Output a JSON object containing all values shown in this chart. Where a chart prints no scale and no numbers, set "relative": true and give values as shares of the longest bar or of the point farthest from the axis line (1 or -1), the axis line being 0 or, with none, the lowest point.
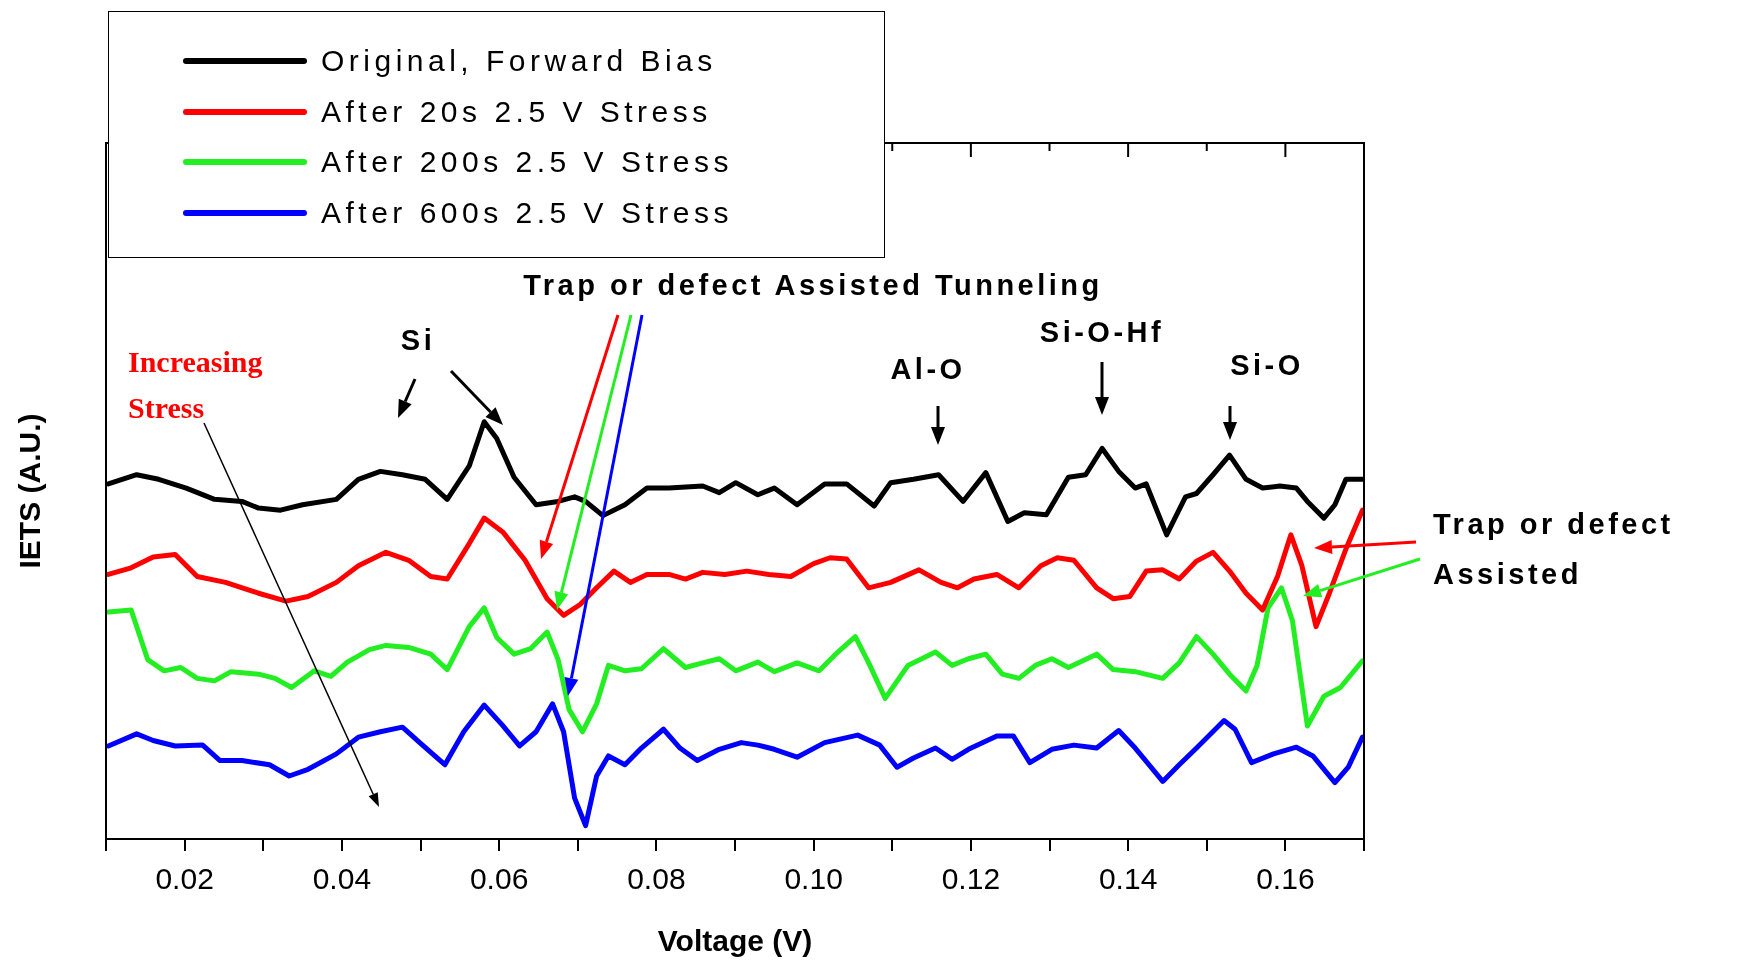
{
  "chart_data": {
    "type": "line",
    "xlabel": "Voltage (V)",
    "ylabel": "IETS (A.U.)",
    "relative": true,
    "xlim": [
      0.01,
      0.17
    ],
    "xticks": [
      {
        "value": 0.01,
        "label": null
      },
      0.02,
      {
        "value": 0.03,
        "label": null
      },
      0.04,
      {
        "value": 0.05,
        "label": null
      },
      0.06,
      {
        "value": 0.07,
        "label": null
      },
      0.08,
      {
        "value": 0.09,
        "label": null
      },
      {
        "value": 0.1,
        "label": "0.10"
      },
      {
        "value": 0.11,
        "label": null
      },
      0.12,
      {
        "value": 0.13,
        "label": null
      },
      0.14,
      {
        "value": 0.15,
        "label": null
      },
      0.16,
      {
        "value": 0.17,
        "label": null
      }
    ],
    "grid": false,
    "legend": "top left",
    "marker": "none",
    "series": [
      {
        "name": "Original, Forward Bias",
        "color": "#000000",
        "x": [
          0.0103,
          0.0139,
          0.0167,
          0.0202,
          0.0238,
          0.0273,
          0.0294,
          0.0322,
          0.035,
          0.0393,
          0.0421,
          0.0449,
          0.0477,
          0.0506,
          0.0534,
          0.0562,
          0.0581,
          0.0597,
          0.0619,
          0.0647,
          0.0675,
          0.0696,
          0.071,
          0.0732,
          0.076,
          0.0788,
          0.0816,
          0.0859,
          0.088,
          0.0901,
          0.0929,
          0.095,
          0.0979,
          0.1014,
          0.1042,
          0.1077,
          0.1098,
          0.1127,
          0.1159,
          0.119,
          0.1219,
          0.1247,
          0.1268,
          0.1296,
          0.1324,
          0.1346,
          0.1367,
          0.1388,
          0.1409,
          0.1423,
          0.1449,
          0.1473,
          0.1487,
          0.1508,
          0.1529,
          0.155,
          0.1571,
          0.1593,
          0.1614,
          0.1628,
          0.1649,
          0.1663,
          0.1677,
          0.1698
        ],
        "values": [
          0.851,
          0.873,
          0.862,
          0.841,
          0.814,
          0.809,
          0.793,
          0.788,
          0.801,
          0.814,
          0.862,
          0.881,
          0.873,
          0.862,
          0.814,
          0.894,
          1.0,
          0.96,
          0.867,
          0.801,
          0.809,
          0.82,
          0.809,
          0.775,
          0.801,
          0.841,
          0.841,
          0.846,
          0.83,
          0.854,
          0.825,
          0.841,
          0.801,
          0.851,
          0.851,
          0.798,
          0.854,
          0.862,
          0.873,
          0.809,
          0.878,
          0.761,
          0.782,
          0.777,
          0.867,
          0.873,
          0.936,
          0.881,
          0.841,
          0.851,
          0.729,
          0.82,
          0.828,
          0.873,
          0.92,
          0.862,
          0.841,
          0.846,
          0.841,
          0.809,
          0.769,
          0.801,
          0.862,
          0.862
        ]
      },
      {
        "name": "After 20s 2.5 V Stress",
        "color": "#ff0000",
        "x": [
          0.0103,
          0.0132,
          0.016,
          0.0188,
          0.0216,
          0.0252,
          0.0294,
          0.0329,
          0.0357,
          0.0393,
          0.0421,
          0.0456,
          0.0485,
          0.0513,
          0.0534,
          0.0562,
          0.0581,
          0.0605,
          0.0633,
          0.0661,
          0.0682,
          0.0703,
          0.0724,
          0.0746,
          0.0767,
          0.0788,
          0.0816,
          0.0837,
          0.0859,
          0.0887,
          0.0915,
          0.0943,
          0.0971,
          0.1,
          0.1021,
          0.1042,
          0.107,
          0.1098,
          0.1134,
          0.1162,
          0.1183,
          0.1204,
          0.1233,
          0.1261,
          0.1289,
          0.131,
          0.1331,
          0.136,
          0.1381,
          0.1402,
          0.1423,
          0.1444,
          0.1465,
          0.1487,
          0.1508,
          0.1529,
          0.155,
          0.1571,
          0.159,
          0.1607,
          0.1621,
          0.1639,
          0.1656,
          0.1677,
          0.1698
        ],
        "values": [
          0.634,
          0.65,
          0.676,
          0.682,
          0.629,
          0.615,
          0.589,
          0.57,
          0.581,
          0.615,
          0.655,
          0.687,
          0.668,
          0.629,
          0.623,
          0.708,
          0.769,
          0.735,
          0.668,
          0.576,
          0.536,
          0.562,
          0.602,
          0.642,
          0.615,
          0.634,
          0.634,
          0.623,
          0.639,
          0.634,
          0.642,
          0.634,
          0.629,
          0.66,
          0.674,
          0.671,
          0.602,
          0.615,
          0.645,
          0.615,
          0.602,
          0.623,
          0.634,
          0.602,
          0.655,
          0.674,
          0.668,
          0.602,
          0.576,
          0.581,
          0.642,
          0.645,
          0.623,
          0.666,
          0.687,
          0.642,
          0.589,
          0.549,
          0.629,
          0.729,
          0.655,
          0.509,
          0.589,
          0.695,
          0.788
        ]
      },
      {
        "name": "After 200s 2.5 V Stress",
        "color": "#22ee22",
        "x": [
          0.0103,
          0.0132,
          0.0153,
          0.0174,
          0.0195,
          0.0216,
          0.0238,
          0.0259,
          0.0294,
          0.0315,
          0.0336,
          0.0365,
          0.0386,
          0.0407,
          0.0435,
          0.0456,
          0.0485,
          0.0513,
          0.0534,
          0.0562,
          0.0581,
          0.0597,
          0.0619,
          0.064,
          0.0661,
          0.0675,
          0.0689,
          0.0706,
          0.0724,
          0.0739,
          0.076,
          0.0781,
          0.0809,
          0.0837,
          0.0859,
          0.088,
          0.0901,
          0.0929,
          0.095,
          0.0979,
          0.1007,
          0.1028,
          0.1053,
          0.107,
          0.1091,
          0.112,
          0.1155,
          0.1176,
          0.1197,
          0.1219,
          0.124,
          0.1261,
          0.1282,
          0.1303,
          0.1324,
          0.136,
          0.1381,
          0.1409,
          0.1444,
          0.1465,
          0.1487,
          0.1508,
          0.1529,
          0.155,
          0.1564,
          0.1578,
          0.1595,
          0.1609,
          0.1628,
          0.1649,
          0.167,
          0.1698
        ],
        "values": [
          0.544,
          0.549,
          0.43,
          0.403,
          0.411,
          0.385,
          0.379,
          0.401,
          0.395,
          0.385,
          0.363,
          0.403,
          0.39,
          0.424,
          0.454,
          0.464,
          0.459,
          0.443,
          0.406,
          0.509,
          0.554,
          0.483,
          0.443,
          0.456,
          0.496,
          0.43,
          0.31,
          0.257,
          0.324,
          0.416,
          0.403,
          0.408,
          0.456,
          0.411,
          0.422,
          0.432,
          0.403,
          0.424,
          0.401,
          0.422,
          0.403,
          0.443,
          0.485,
          0.422,
          0.337,
          0.416,
          0.448,
          0.416,
          0.432,
          0.443,
          0.395,
          0.385,
          0.416,
          0.432,
          0.411,
          0.443,
          0.406,
          0.401,
          0.385,
          0.422,
          0.485,
          0.443,
          0.395,
          0.355,
          0.416,
          0.554,
          0.602,
          0.523,
          0.271,
          0.342,
          0.363,
          0.427
        ]
      },
      {
        "name": "After 600s 2.5 V Stress",
        "color": "#0000ff",
        "x": [
          0.0103,
          0.0139,
          0.016,
          0.0188,
          0.0223,
          0.0245,
          0.0273,
          0.0308,
          0.0333,
          0.0357,
          0.0393,
          0.0421,
          0.0449,
          0.0477,
          0.0499,
          0.0531,
          0.0555,
          0.0581,
          0.0605,
          0.0626,
          0.0647,
          0.0668,
          0.0682,
          0.0696,
          0.071,
          0.0724,
          0.0739,
          0.076,
          0.0781,
          0.0809,
          0.083,
          0.0852,
          0.088,
          0.0908,
          0.0929,
          0.095,
          0.0979,
          0.1014,
          0.1056,
          0.1084,
          0.1106,
          0.1127,
          0.1155,
          0.1176,
          0.1197,
          0.1233,
          0.1254,
          0.1275,
          0.1303,
          0.1331,
          0.136,
          0.1388,
          0.1409,
          0.1444,
          0.1465,
          0.1487,
          0.1522,
          0.1536,
          0.1557,
          0.1585,
          0.1614,
          0.1635,
          0.1663,
          0.168,
          0.1698
        ],
        "values": [
          0.223,
          0.252,
          0.236,
          0.223,
          0.225,
          0.188,
          0.188,
          0.178,
          0.151,
          0.167,
          0.204,
          0.244,
          0.257,
          0.268,
          0.231,
          0.178,
          0.257,
          0.321,
          0.271,
          0.223,
          0.257,
          0.324,
          0.257,
          0.098,
          0.032,
          0.151,
          0.199,
          0.178,
          0.218,
          0.263,
          0.218,
          0.188,
          0.215,
          0.231,
          0.225,
          0.215,
          0.196,
          0.231,
          0.249,
          0.225,
          0.172,
          0.194,
          0.218,
          0.191,
          0.215,
          0.247,
          0.247,
          0.183,
          0.215,
          0.225,
          0.218,
          0.26,
          0.218,
          0.138,
          0.178,
          0.218,
          0.284,
          0.263,
          0.183,
          0.204,
          0.22,
          0.199,
          0.135,
          0.172,
          0.244
        ]
      }
    ],
    "annotations": [
      "Trap or defect Assisted Tunneling",
      "Si",
      "Al-O",
      "Si-O-Hf",
      "Si-O",
      "Increasing\nStress",
      "Trap or defect\nAssisted"
    ]
  }
}
